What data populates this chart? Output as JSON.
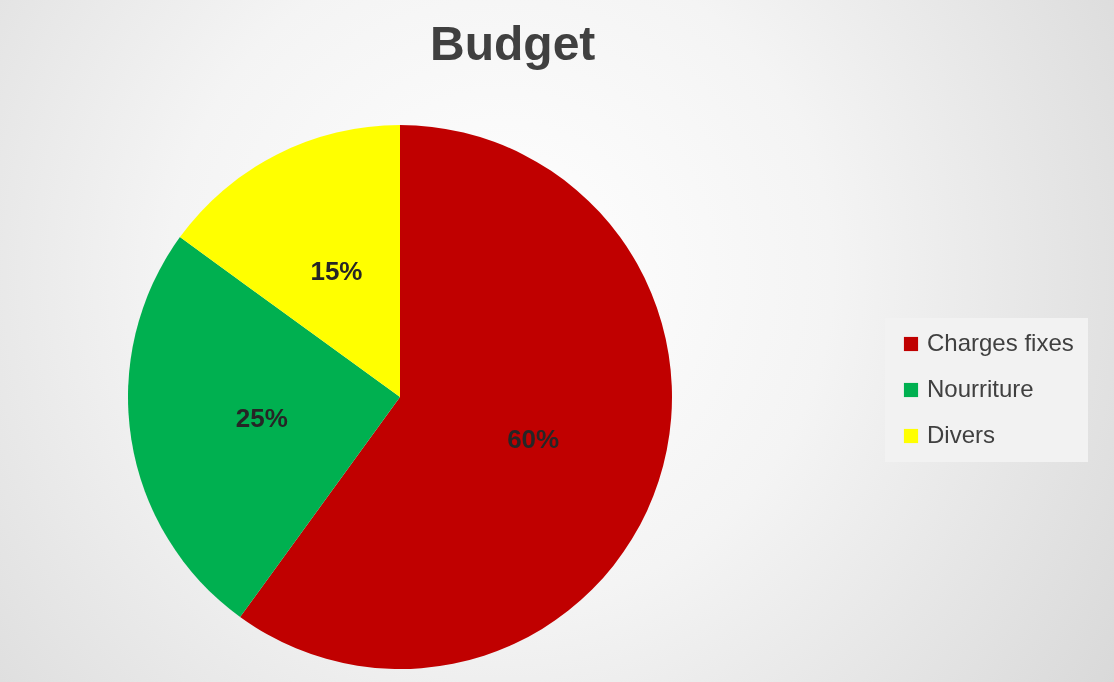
{
  "chart_data": {
    "type": "pie",
    "title": "Budget",
    "categories": [
      "Charges fixes",
      "Nourriture",
      "Divers"
    ],
    "values": [
      60,
      25,
      15
    ],
    "colors": [
      "#c00000",
      "#00b050",
      "#ffff00"
    ],
    "value_labels": [
      "60%",
      "25%",
      "15%"
    ],
    "legend": "right"
  }
}
